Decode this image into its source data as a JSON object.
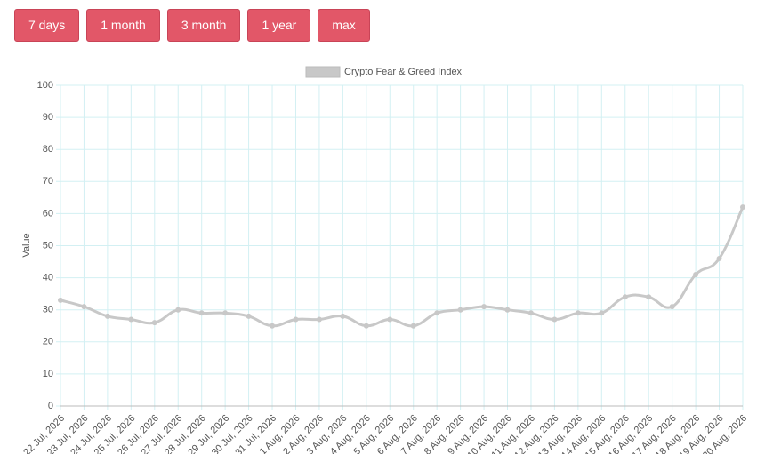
{
  "buttons": [
    "7 days",
    "1 month",
    "3 month",
    "1 year",
    "max"
  ],
  "chart_data": {
    "type": "line",
    "y_label": "Value",
    "categories": [
      "22 Jul, 2026",
      "23 Jul, 2026",
      "24 Jul, 2026",
      "25 Jul, 2026",
      "26 Jul, 2026",
      "27 Jul, 2026",
      "28 Jul, 2026",
      "29 Jul, 2026",
      "30 Jul, 2026",
      "31 Jul, 2026",
      "1 Aug, 2026",
      "2 Aug, 2026",
      "3 Aug, 2026",
      "4 Aug, 2026",
      "5 Aug, 2026",
      "6 Aug, 2026",
      "7 Aug, 2026",
      "8 Aug, 2026",
      "9 Aug, 2026",
      "10 Aug, 2026",
      "11 Aug, 2026",
      "12 Aug, 2026",
      "13 Aug, 2026",
      "14 Aug, 2026",
      "15 Aug, 2026",
      "16 Aug, 2026",
      "17 Aug, 2026",
      "18 Aug, 2026",
      "19 Aug, 2026",
      "20 Aug, 2026"
    ],
    "series": [
      {
        "name": "Crypto Fear & Greed Index",
        "color": "#c8c8c8",
        "values": [
          33,
          31,
          28,
          27,
          26,
          30,
          29,
          29,
          28,
          25,
          27,
          27,
          28,
          25,
          27,
          25,
          29,
          30,
          31,
          30,
          29,
          27,
          29,
          29,
          34,
          34,
          31,
          41,
          46,
          62
        ]
      }
    ],
    "ylim": [
      0,
      100
    ],
    "yticks": [
      0,
      10,
      20,
      30,
      40,
      50,
      60,
      70,
      80,
      90,
      100
    ],
    "grid": true,
    "legend": "top"
  }
}
